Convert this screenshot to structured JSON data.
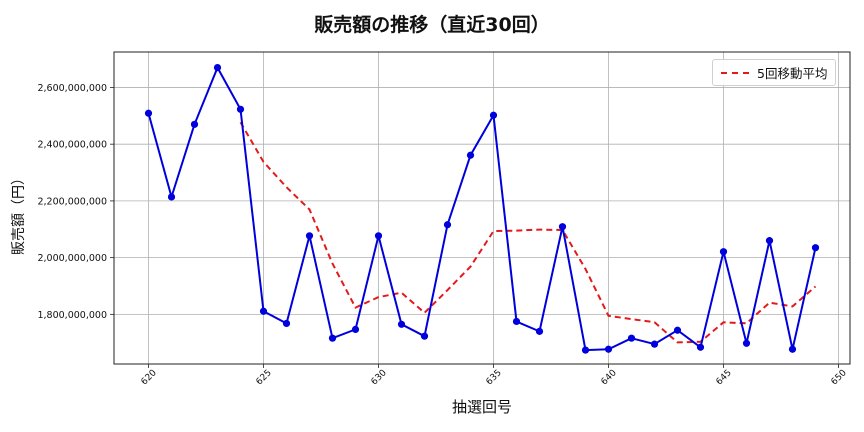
{
  "chart_data": {
    "type": "line",
    "title": "販売額の推移（直近30回）",
    "xlabel": "抽選回号",
    "ylabel": "販売額（円）",
    "x": [
      620,
      621,
      622,
      623,
      624,
      625,
      626,
      627,
      628,
      629,
      630,
      631,
      632,
      633,
      634,
      635,
      636,
      637,
      638,
      639,
      640,
      641,
      642,
      643,
      644,
      645,
      646,
      647,
      648,
      649
    ],
    "series": [
      {
        "name": "販売額",
        "style": "solid line with circle markers",
        "color": "#0000dd",
        "values": [
          2509000000,
          2214000000,
          2470000000,
          2670000000,
          2523000000,
          1811000000,
          1768000000,
          2077000000,
          1716000000,
          1747000000,
          2077000000,
          1765000000,
          1723000000,
          2116000000,
          2361000000,
          2502000000,
          1775000000,
          1740000000,
          2109000000,
          1674000000,
          1677000000,
          1716000000,
          1695000000,
          1744000000,
          1684000000,
          2021000000,
          1698000000,
          2060000000,
          1677000000,
          2035000000
        ]
      },
      {
        "name": "5回移動平均",
        "style": "dashed line",
        "color": "#e31a1c",
        "values": [
          null,
          null,
          null,
          null,
          2477200000,
          2337600000,
          2248400000,
          2169800000,
          1979000000,
          1823800000,
          1861000000,
          1876400000,
          1805600000,
          1885600000,
          1968400000,
          2093400000,
          2095400000,
          2098800000,
          2097400000,
          1960000000,
          1795000000,
          1783200000,
          1772200000,
          1701200000,
          1703200000,
          1772000000,
          1768400000,
          1841400000,
          1828000000,
          1898200000
        ]
      }
    ],
    "legend": {
      "entries": [
        "5回移動平均"
      ],
      "position": "upper right"
    },
    "yticks": [
      "1,800,000,000",
      "2,000,000,000",
      "2,200,000,000",
      "2,400,000,000",
      "2,600,000,000"
    ],
    "ytick_values": [
      1800000000,
      2000000000,
      2200000000,
      2400000000,
      2600000000
    ],
    "xticks": [
      "620",
      "625",
      "630",
      "635",
      "640",
      "645",
      "650"
    ],
    "xtick_values": [
      620,
      625,
      630,
      635,
      640,
      645,
      650
    ],
    "xlim": [
      618.5,
      650.5
    ],
    "ylim": [
      1625000000,
      2725000000
    ],
    "grid": true
  }
}
